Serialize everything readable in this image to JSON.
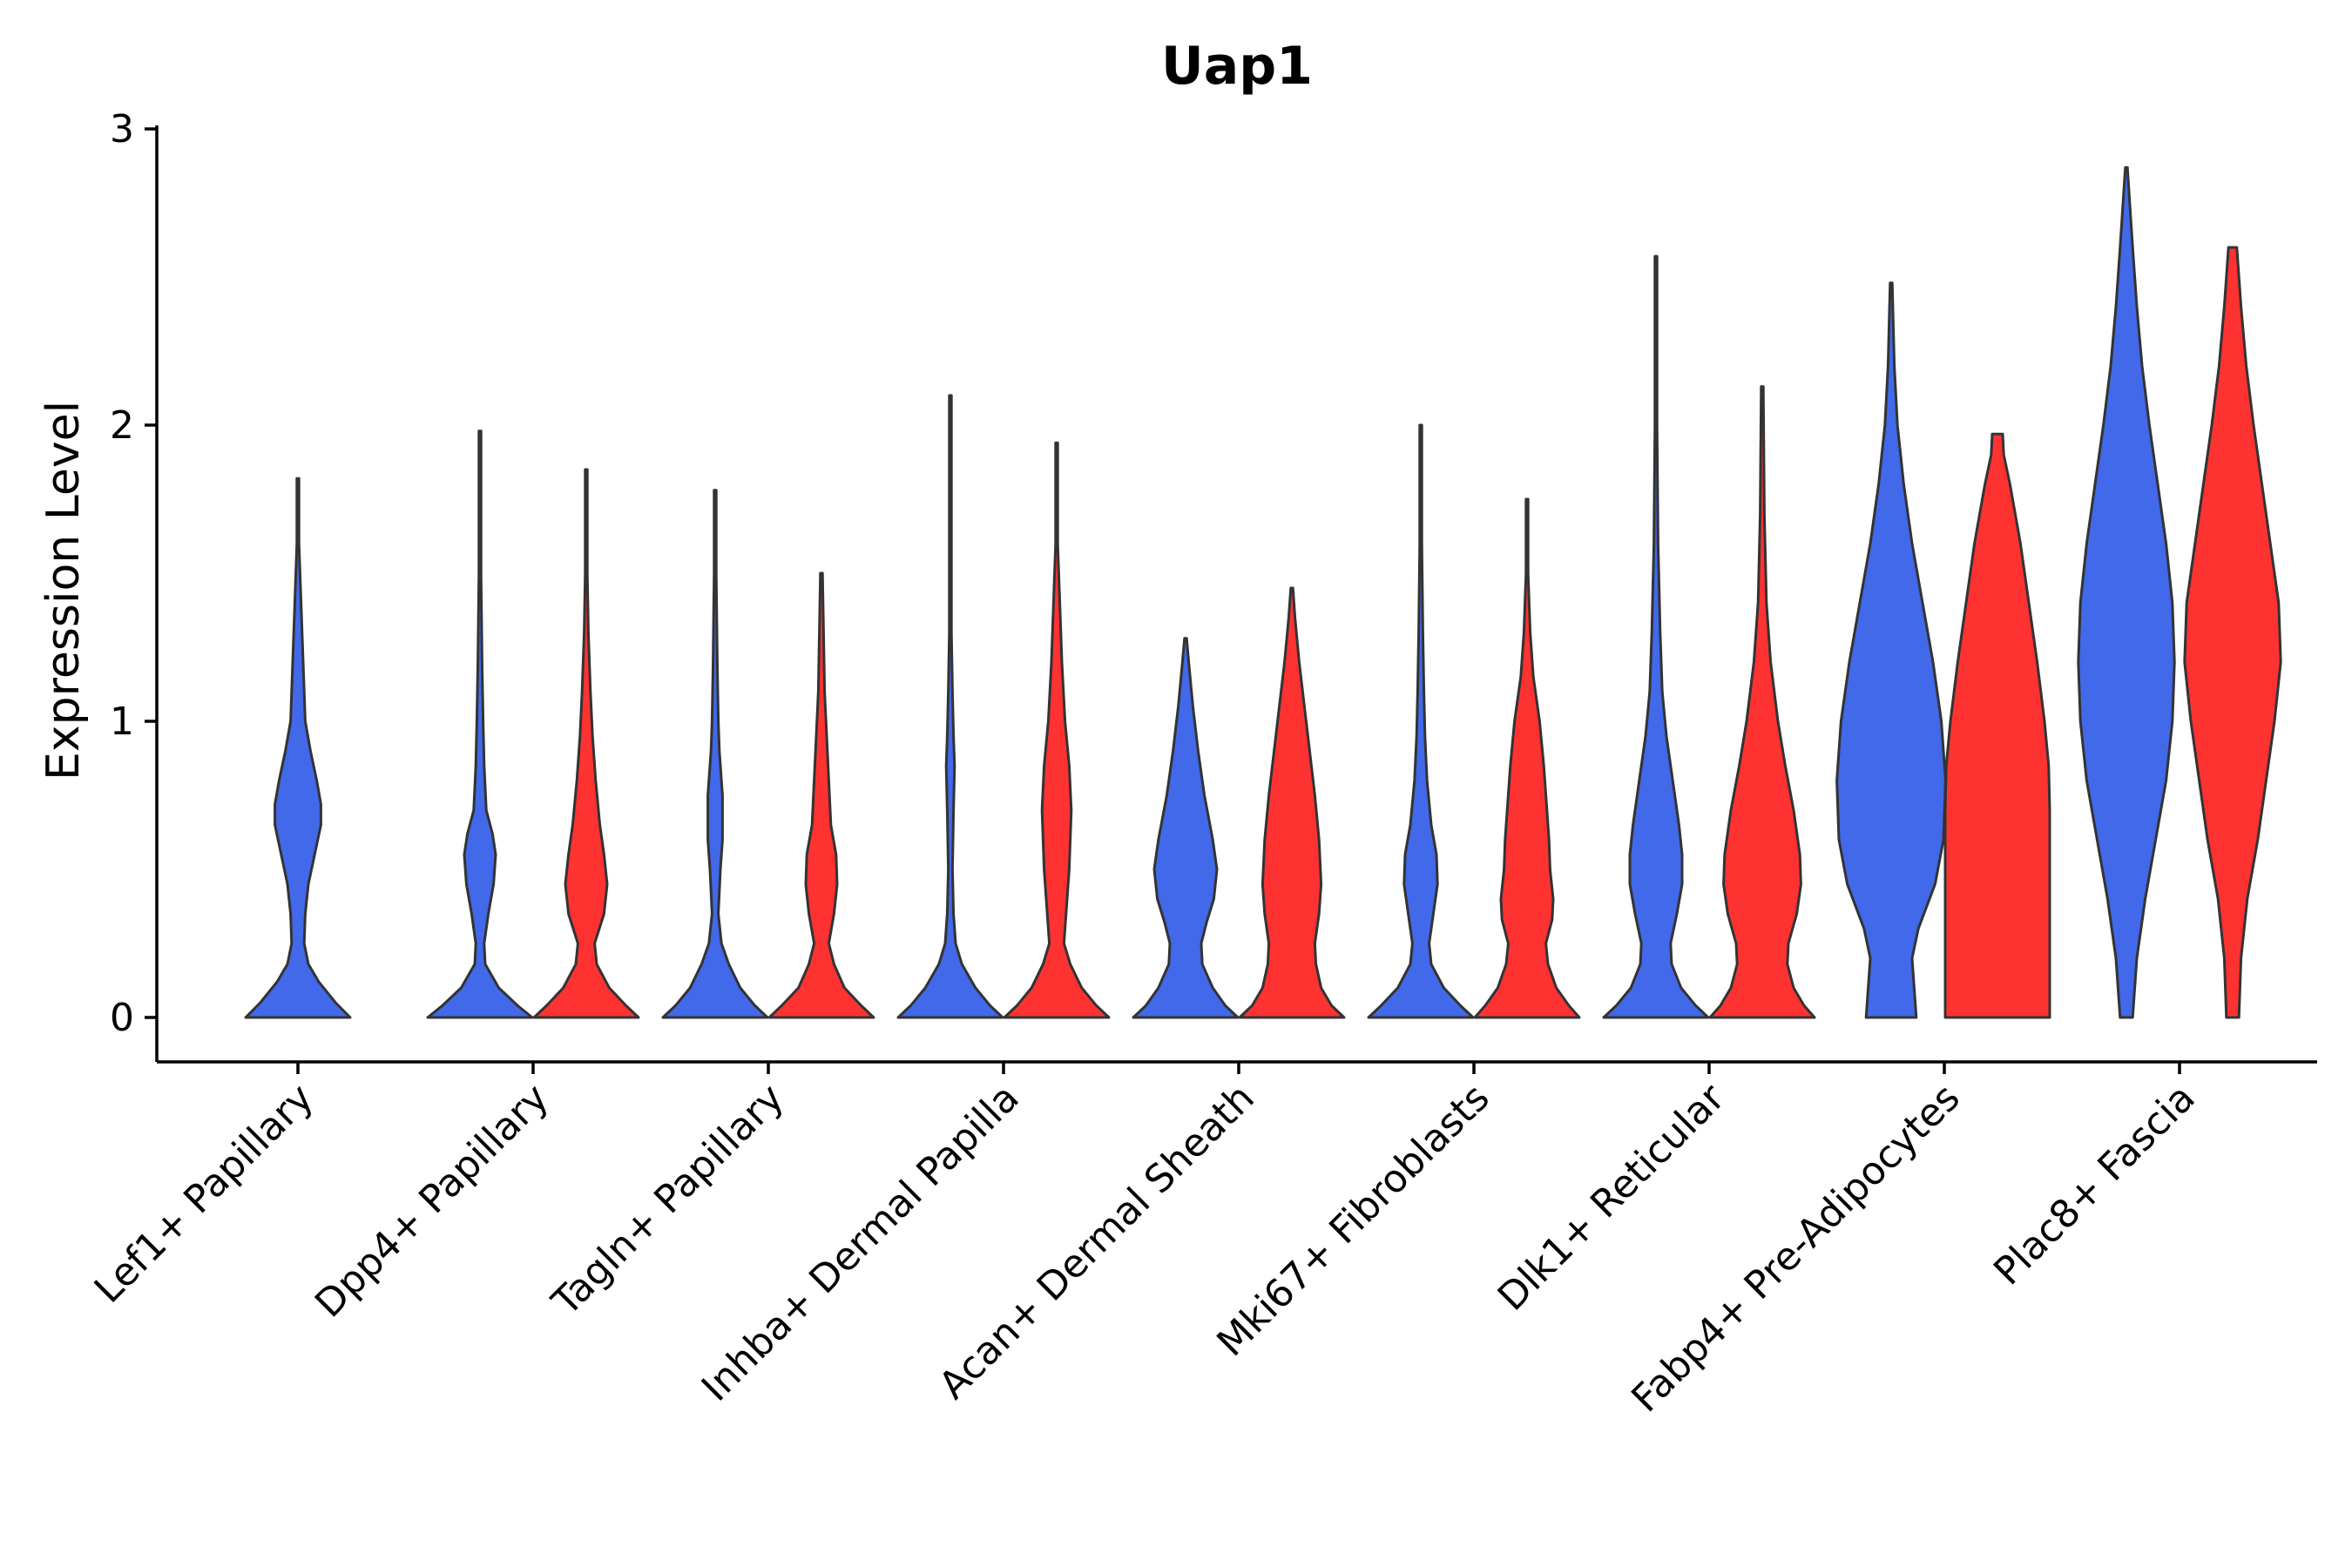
{
  "chart_data": {
    "type": "violin",
    "title": "Uap1",
    "ylabel": "Expression Level",
    "xlabel": "",
    "ylim": [
      -0.15,
      3.0
    ],
    "yticks": [
      0,
      1,
      2,
      3
    ],
    "ytick_labels": [
      "0",
      "1",
      "2",
      "3"
    ],
    "legend": "none",
    "colors": {
      "blue": "#4169E9",
      "red": "#FF3232"
    },
    "categories": [
      "Lef1+ Papillary",
      "Dpp4+ Papillary",
      "Tagln+ Papillary",
      "Inhba+ Dermal Papilla",
      "Acan+ Dermal Sheath",
      "Mki67+ Fibroblasts",
      "Dlk1+ Reticular",
      "Fabp4+ Pre-Adipocytes",
      "Plac8+ Fascia"
    ],
    "violins": [
      {
        "category": 0,
        "group": "blue",
        "max": 1.82,
        "profile": [
          [
            0,
            0.5
          ],
          [
            0.05,
            0.36
          ],
          [
            0.12,
            0.2
          ],
          [
            0.18,
            0.1
          ],
          [
            0.25,
            0.06
          ],
          [
            0.35,
            0.07
          ],
          [
            0.45,
            0.1
          ],
          [
            0.55,
            0.16
          ],
          [
            0.65,
            0.22
          ],
          [
            0.72,
            0.22
          ],
          [
            0.8,
            0.18
          ],
          [
            0.9,
            0.12
          ],
          [
            1.0,
            0.07
          ],
          [
            1.2,
            0.05
          ],
          [
            1.4,
            0.03
          ],
          [
            1.6,
            0.01
          ],
          [
            1.82,
            0.01
          ]
        ]
      },
      {
        "category": 1,
        "group": "blue",
        "max": 1.98,
        "profile": [
          [
            0,
            0.5
          ],
          [
            0.04,
            0.36
          ],
          [
            0.1,
            0.18
          ],
          [
            0.18,
            0.05
          ],
          [
            0.25,
            0.04
          ],
          [
            0.35,
            0.08
          ],
          [
            0.45,
            0.13
          ],
          [
            0.55,
            0.15
          ],
          [
            0.62,
            0.12
          ],
          [
            0.7,
            0.06
          ],
          [
            0.85,
            0.04
          ],
          [
            1.0,
            0.03
          ],
          [
            1.2,
            0.02
          ],
          [
            1.5,
            0.01
          ],
          [
            1.98,
            0.01
          ]
        ]
      },
      {
        "category": 1,
        "group": "red",
        "max": 1.85,
        "profile": [
          [
            0,
            0.5
          ],
          [
            0.04,
            0.38
          ],
          [
            0.1,
            0.22
          ],
          [
            0.18,
            0.1
          ],
          [
            0.25,
            0.08
          ],
          [
            0.35,
            0.17
          ],
          [
            0.45,
            0.2
          ],
          [
            0.55,
            0.17
          ],
          [
            0.65,
            0.13
          ],
          [
            0.8,
            0.09
          ],
          [
            0.95,
            0.06
          ],
          [
            1.1,
            0.04
          ],
          [
            1.3,
            0.02
          ],
          [
            1.5,
            0.01
          ],
          [
            1.85,
            0.01
          ]
        ]
      },
      {
        "category": 2,
        "group": "blue",
        "max": 1.78,
        "profile": [
          [
            0,
            0.5
          ],
          [
            0.04,
            0.38
          ],
          [
            0.1,
            0.24
          ],
          [
            0.18,
            0.13
          ],
          [
            0.25,
            0.06
          ],
          [
            0.35,
            0.03
          ],
          [
            0.5,
            0.05
          ],
          [
            0.6,
            0.07
          ],
          [
            0.75,
            0.07
          ],
          [
            0.9,
            0.04
          ],
          [
            1.0,
            0.03
          ],
          [
            1.2,
            0.02
          ],
          [
            1.5,
            0.01
          ],
          [
            1.78,
            0.01
          ]
        ]
      },
      {
        "category": 2,
        "group": "red",
        "max": 1.5,
        "profile": [
          [
            0,
            0.5
          ],
          [
            0.04,
            0.38
          ],
          [
            0.1,
            0.22
          ],
          [
            0.18,
            0.12
          ],
          [
            0.25,
            0.07
          ],
          [
            0.35,
            0.12
          ],
          [
            0.45,
            0.15
          ],
          [
            0.55,
            0.14
          ],
          [
            0.65,
            0.09
          ],
          [
            0.8,
            0.07
          ],
          [
            0.95,
            0.05
          ],
          [
            1.1,
            0.03
          ],
          [
            1.3,
            0.02
          ],
          [
            1.5,
            0.01
          ]
        ]
      },
      {
        "category": 3,
        "group": "blue",
        "max": 2.1,
        "profile": [
          [
            0,
            0.5
          ],
          [
            0.04,
            0.38
          ],
          [
            0.1,
            0.24
          ],
          [
            0.18,
            0.11
          ],
          [
            0.25,
            0.05
          ],
          [
            0.35,
            0.03
          ],
          [
            0.5,
            0.02
          ],
          [
            0.7,
            0.03
          ],
          [
            0.85,
            0.04
          ],
          [
            0.95,
            0.03
          ],
          [
            1.1,
            0.02
          ],
          [
            1.3,
            0.01
          ],
          [
            1.6,
            0.01
          ],
          [
            2.1,
            0.01
          ]
        ]
      },
      {
        "category": 3,
        "group": "red",
        "max": 1.94,
        "profile": [
          [
            0,
            0.5
          ],
          [
            0.04,
            0.38
          ],
          [
            0.1,
            0.24
          ],
          [
            0.18,
            0.13
          ],
          [
            0.25,
            0.07
          ],
          [
            0.35,
            0.09
          ],
          [
            0.5,
            0.12
          ],
          [
            0.7,
            0.14
          ],
          [
            0.85,
            0.12
          ],
          [
            1.0,
            0.08
          ],
          [
            1.2,
            0.05
          ],
          [
            1.4,
            0.03
          ],
          [
            1.6,
            0.01
          ],
          [
            1.94,
            0.01
          ]
        ]
      },
      {
        "category": 4,
        "group": "blue",
        "max": 1.28,
        "profile": [
          [
            0,
            0.5
          ],
          [
            0.04,
            0.38
          ],
          [
            0.1,
            0.26
          ],
          [
            0.18,
            0.16
          ],
          [
            0.25,
            0.15
          ],
          [
            0.32,
            0.2
          ],
          [
            0.4,
            0.27
          ],
          [
            0.5,
            0.3
          ],
          [
            0.6,
            0.26
          ],
          [
            0.75,
            0.18
          ],
          [
            0.9,
            0.12
          ],
          [
            1.05,
            0.07
          ],
          [
            1.2,
            0.03
          ],
          [
            1.28,
            0.01
          ]
        ]
      },
      {
        "category": 4,
        "group": "red",
        "max": 1.45,
        "profile": [
          [
            0,
            0.5
          ],
          [
            0.04,
            0.38
          ],
          [
            0.1,
            0.28
          ],
          [
            0.18,
            0.23
          ],
          [
            0.25,
            0.22
          ],
          [
            0.35,
            0.26
          ],
          [
            0.45,
            0.28
          ],
          [
            0.6,
            0.26
          ],
          [
            0.75,
            0.22
          ],
          [
            0.9,
            0.17
          ],
          [
            1.05,
            0.12
          ],
          [
            1.2,
            0.07
          ],
          [
            1.35,
            0.03
          ],
          [
            1.45,
            0.01
          ]
        ]
      },
      {
        "category": 5,
        "group": "blue",
        "max": 2.0,
        "profile": [
          [
            0,
            0.5
          ],
          [
            0.04,
            0.38
          ],
          [
            0.1,
            0.22
          ],
          [
            0.18,
            0.1
          ],
          [
            0.25,
            0.08
          ],
          [
            0.35,
            0.12
          ],
          [
            0.45,
            0.16
          ],
          [
            0.55,
            0.15
          ],
          [
            0.65,
            0.1
          ],
          [
            0.8,
            0.06
          ],
          [
            0.95,
            0.04
          ],
          [
            1.1,
            0.03
          ],
          [
            1.3,
            0.02
          ],
          [
            1.6,
            0.01
          ],
          [
            2.0,
            0.01
          ]
        ]
      },
      {
        "category": 5,
        "group": "red",
        "max": 1.75,
        "profile": [
          [
            0,
            0.5
          ],
          [
            0.04,
            0.4
          ],
          [
            0.1,
            0.28
          ],
          [
            0.18,
            0.2
          ],
          [
            0.25,
            0.18
          ],
          [
            0.33,
            0.24
          ],
          [
            0.4,
            0.25
          ],
          [
            0.5,
            0.22
          ],
          [
            0.6,
            0.21
          ],
          [
            0.7,
            0.19
          ],
          [
            0.85,
            0.16
          ],
          [
            1.0,
            0.12
          ],
          [
            1.15,
            0.06
          ],
          [
            1.3,
            0.03
          ],
          [
            1.5,
            0.01
          ],
          [
            1.75,
            0.01
          ]
        ]
      },
      {
        "category": 6,
        "group": "blue",
        "max": 2.57,
        "profile": [
          [
            0,
            0.5
          ],
          [
            0.04,
            0.38
          ],
          [
            0.1,
            0.24
          ],
          [
            0.18,
            0.15
          ],
          [
            0.25,
            0.14
          ],
          [
            0.35,
            0.2
          ],
          [
            0.45,
            0.25
          ],
          [
            0.55,
            0.25
          ],
          [
            0.65,
            0.22
          ],
          [
            0.8,
            0.16
          ],
          [
            0.95,
            0.1
          ],
          [
            1.1,
            0.06
          ],
          [
            1.3,
            0.04
          ],
          [
            1.6,
            0.02
          ],
          [
            2.0,
            0.01
          ],
          [
            2.57,
            0.01
          ]
        ]
      },
      {
        "category": 6,
        "group": "red",
        "max": 2.13,
        "profile": [
          [
            0,
            0.5
          ],
          [
            0.04,
            0.4
          ],
          [
            0.1,
            0.3
          ],
          [
            0.18,
            0.24
          ],
          [
            0.25,
            0.25
          ],
          [
            0.35,
            0.33
          ],
          [
            0.45,
            0.37
          ],
          [
            0.55,
            0.36
          ],
          [
            0.7,
            0.3
          ],
          [
            0.85,
            0.22
          ],
          [
            1.0,
            0.15
          ],
          [
            1.2,
            0.08
          ],
          [
            1.4,
            0.04
          ],
          [
            1.7,
            0.02
          ],
          [
            2.13,
            0.01
          ]
        ]
      },
      {
        "category": 7,
        "group": "blue",
        "max": 2.48,
        "profile": [
          [
            0,
            0.24
          ],
          [
            0.1,
            0.22
          ],
          [
            0.2,
            0.2
          ],
          [
            0.3,
            0.26
          ],
          [
            0.45,
            0.42
          ],
          [
            0.6,
            0.5
          ],
          [
            0.8,
            0.52
          ],
          [
            1.0,
            0.48
          ],
          [
            1.2,
            0.4
          ],
          [
            1.4,
            0.3
          ],
          [
            1.6,
            0.2
          ],
          [
            1.8,
            0.12
          ],
          [
            2.0,
            0.06
          ],
          [
            2.2,
            0.03
          ],
          [
            2.48,
            0.01
          ]
        ]
      },
      {
        "category": 7,
        "group": "red",
        "max": 1.97,
        "profile": [
          [
            0,
            0.5
          ],
          [
            0.1,
            0.5
          ],
          [
            0.3,
            0.5
          ],
          [
            0.5,
            0.5
          ],
          [
            0.7,
            0.5
          ],
          [
            0.85,
            0.49
          ],
          [
            1.0,
            0.45
          ],
          [
            1.2,
            0.38
          ],
          [
            1.4,
            0.3
          ],
          [
            1.6,
            0.22
          ],
          [
            1.8,
            0.12
          ],
          [
            1.9,
            0.06
          ],
          [
            1.97,
            0.05
          ],
          [
            1.97,
            0.01
          ]
        ]
      },
      {
        "category": 8,
        "group": "blue",
        "max": 2.87,
        "profile": [
          [
            0,
            0.06
          ],
          [
            0.2,
            0.1
          ],
          [
            0.4,
            0.18
          ],
          [
            0.6,
            0.28
          ],
          [
            0.8,
            0.38
          ],
          [
            1.0,
            0.44
          ],
          [
            1.2,
            0.46
          ],
          [
            1.4,
            0.44
          ],
          [
            1.6,
            0.38
          ],
          [
            1.8,
            0.3
          ],
          [
            2.0,
            0.22
          ],
          [
            2.2,
            0.15
          ],
          [
            2.4,
            0.1
          ],
          [
            2.6,
            0.06
          ],
          [
            2.87,
            0.01
          ]
        ]
      },
      {
        "category": 8,
        "group": "red",
        "max": 2.6,
        "profile": [
          [
            0,
            0.06
          ],
          [
            0.2,
            0.08
          ],
          [
            0.4,
            0.14
          ],
          [
            0.6,
            0.24
          ],
          [
            0.8,
            0.32
          ],
          [
            1.0,
            0.4
          ],
          [
            1.2,
            0.46
          ],
          [
            1.4,
            0.44
          ],
          [
            1.6,
            0.36
          ],
          [
            1.8,
            0.28
          ],
          [
            2.0,
            0.2
          ],
          [
            2.2,
            0.13
          ],
          [
            2.4,
            0.08
          ],
          [
            2.6,
            0.04
          ],
          [
            2.6,
            0.01
          ]
        ]
      }
    ]
  }
}
